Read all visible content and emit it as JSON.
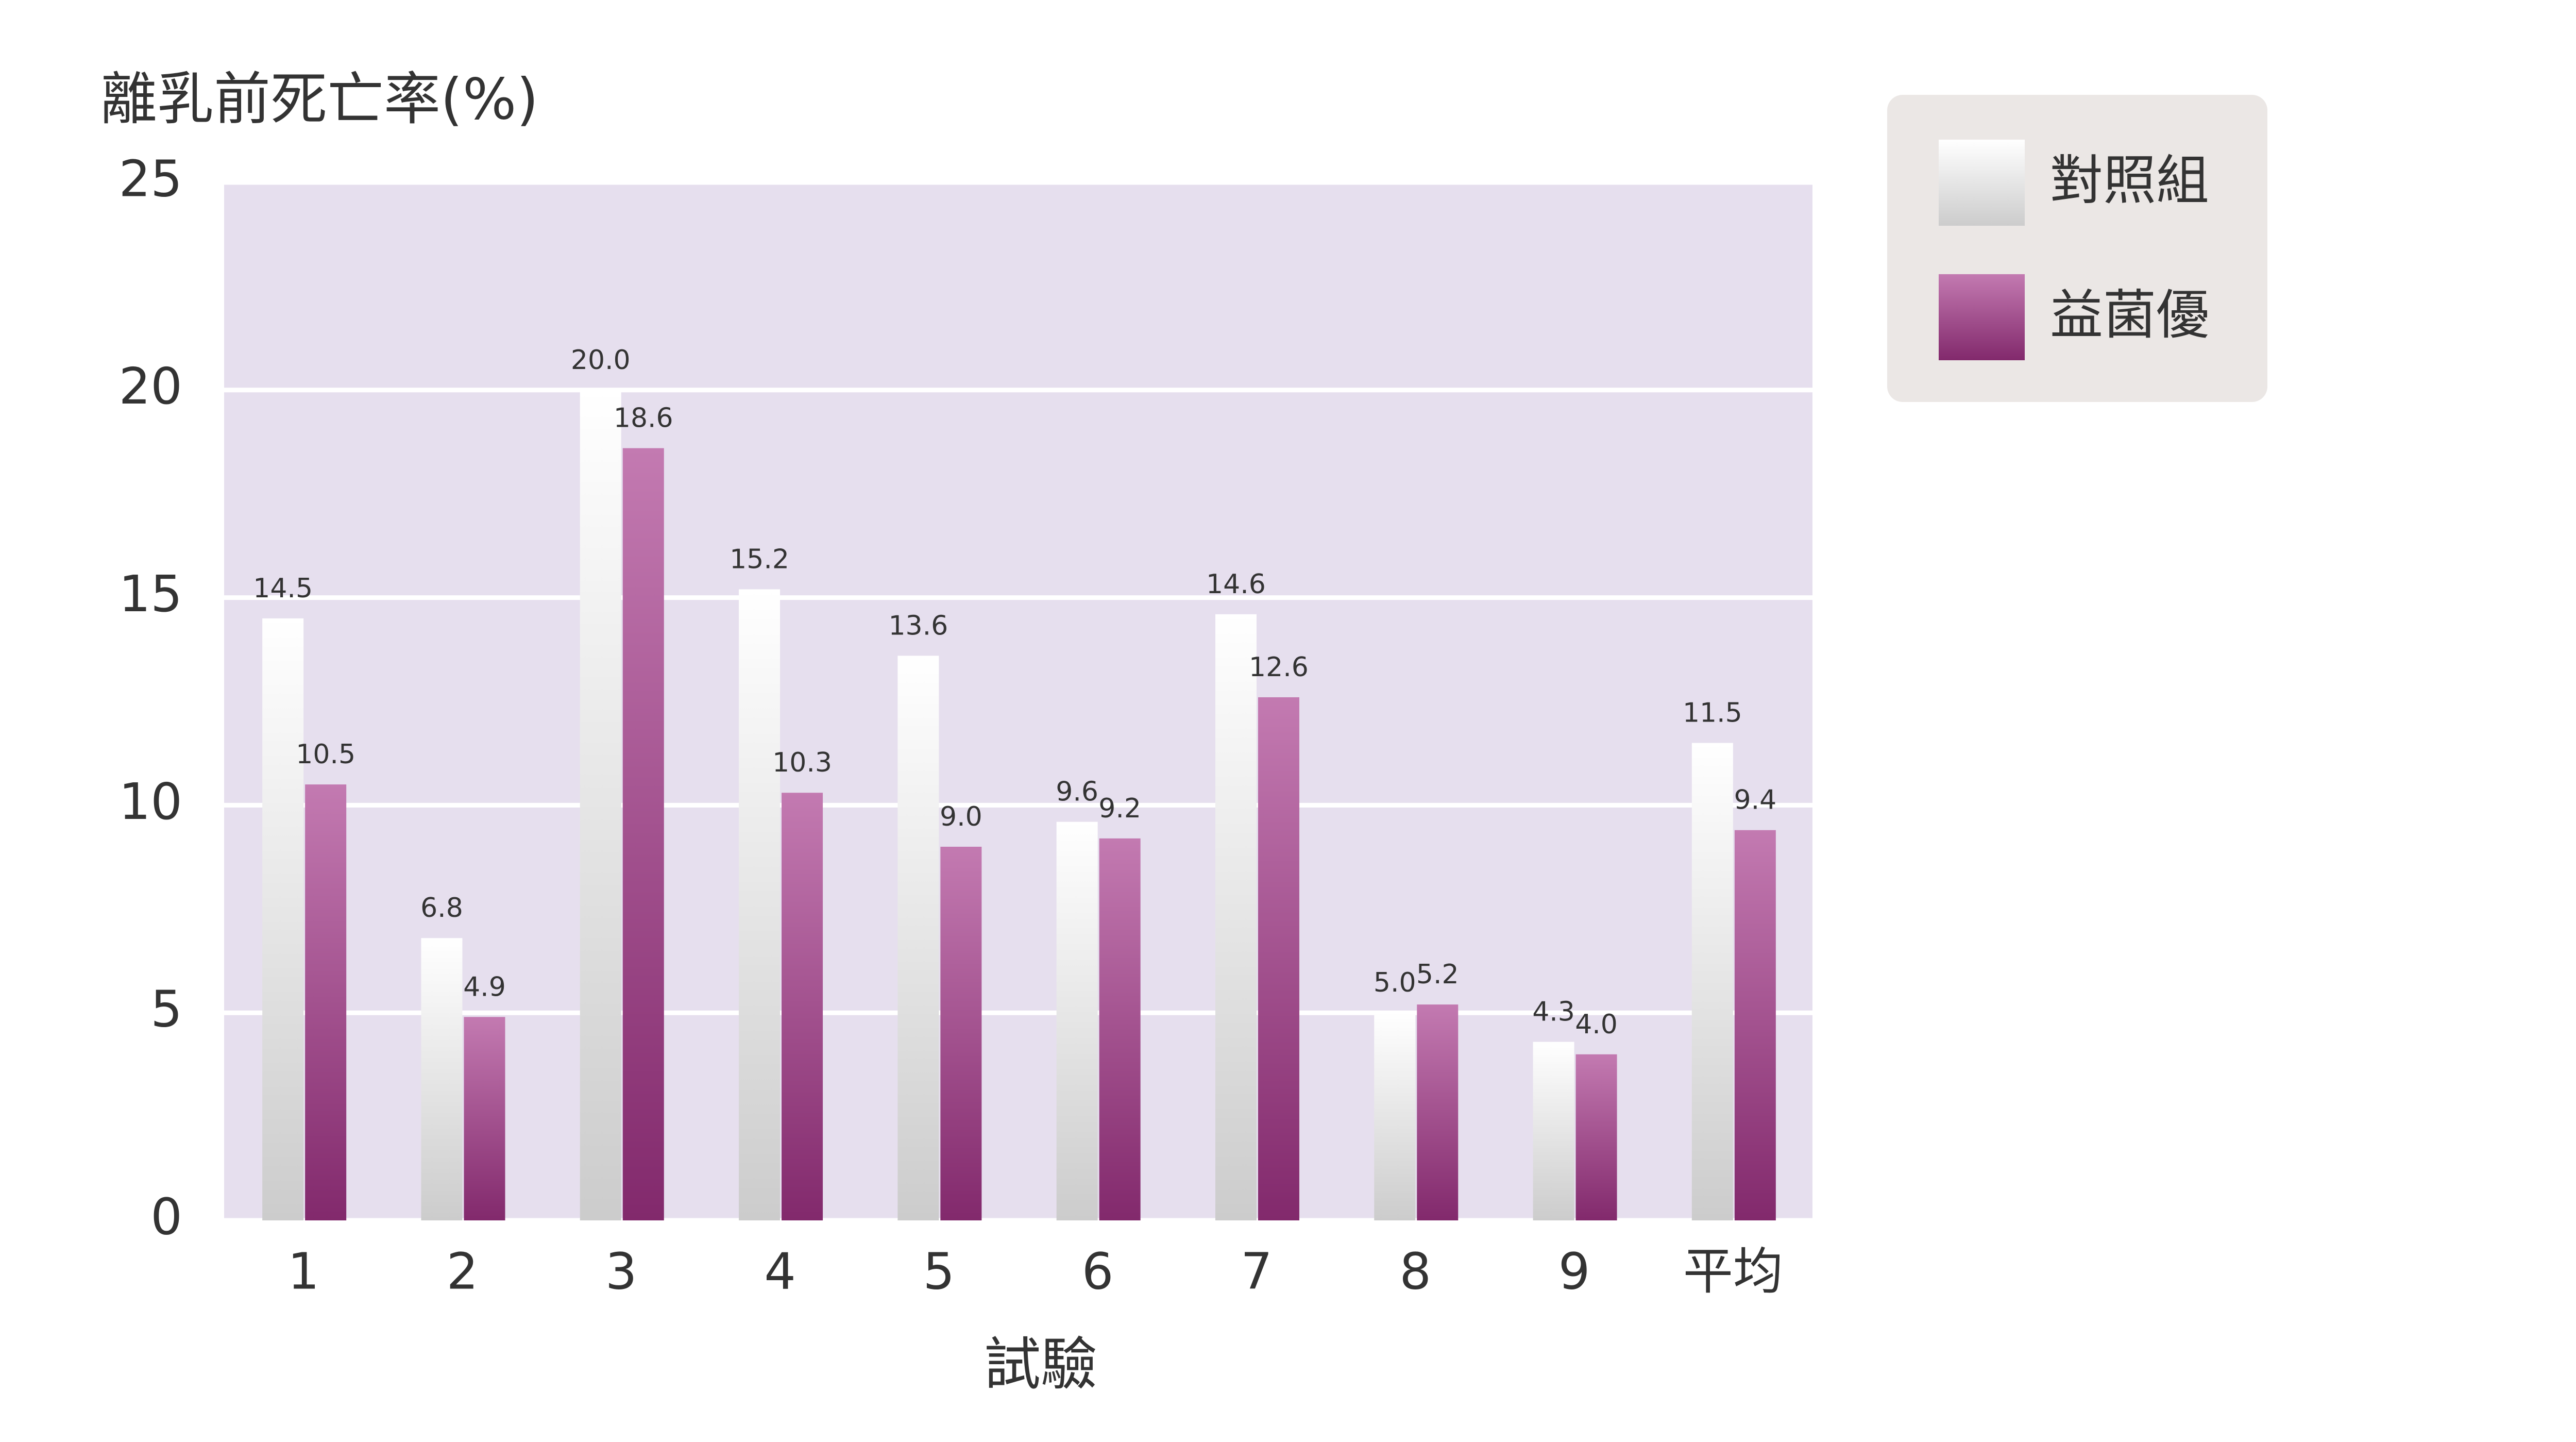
{
  "chart_data": {
    "type": "bar",
    "title": "離乳前死亡率(%)",
    "x_label": "試驗",
    "categories": [
      "1",
      "2",
      "3",
      "4",
      "5",
      "6",
      "7",
      "8",
      "9",
      "平均"
    ],
    "series": [
      {
        "name": "對照組",
        "color": "#ffffff",
        "values": [
          14.5,
          6.8,
          20,
          15.2,
          13.6,
          9.6,
          14.6,
          5,
          4.3,
          11.5
        ],
        "value_labels": [
          "14.5",
          "6.8",
          "20.0",
          "15.2",
          "13.6",
          "9.6",
          "14.6",
          "5.0",
          "4.3",
          "11.5"
        ]
      },
      {
        "name": "益菌優",
        "color": "#a33387",
        "values": [
          10.5,
          4.9,
          18.6,
          10.3,
          9,
          9.2,
          12.6,
          5.2,
          4,
          9.4
        ],
        "value_labels": [
          "10.5",
          "4.9",
          "18.6",
          "10.3",
          "9.0",
          "9.2",
          "12.6",
          "5.2",
          "4.0",
          "9.4"
        ]
      }
    ],
    "ylim": [
      0,
      25
    ],
    "yticks": [
      0,
      5,
      10,
      15,
      20,
      25
    ],
    "grid": true,
    "legend": "upper right outside"
  }
}
